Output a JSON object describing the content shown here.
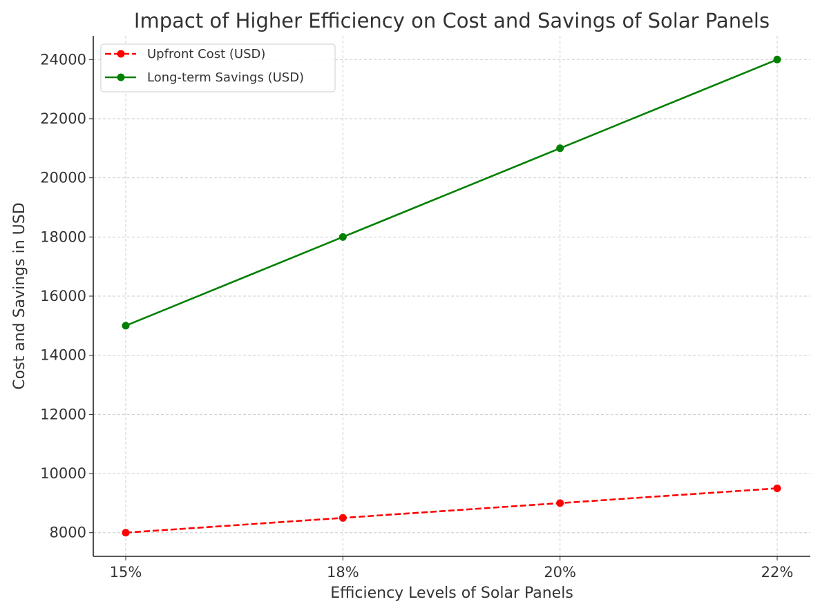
{
  "chart_data": {
    "type": "line",
    "title": "Impact of Higher Efficiency on Cost and Savings of Solar Panels",
    "xlabel": "Efficiency Levels of Solar Panels",
    "ylabel": "Cost and Savings in USD",
    "categories": [
      "15%",
      "18%",
      "20%",
      "22%"
    ],
    "ylim": [
      7200,
      24800
    ],
    "yticks": [
      8000,
      10000,
      12000,
      14000,
      16000,
      18000,
      20000,
      22000,
      24000
    ],
    "grid": true,
    "legend_position": "top-left",
    "series": [
      {
        "name": "Upfront Cost (USD)",
        "values": [
          8000,
          8500,
          9000,
          9500
        ],
        "color": "#ff0000",
        "linestyle": "dashed",
        "marker": "circle"
      },
      {
        "name": "Long-term Savings (USD)",
        "values": [
          15000,
          18000,
          21000,
          24000
        ],
        "color": "#008000",
        "linestyle": "solid",
        "marker": "circle"
      }
    ]
  }
}
